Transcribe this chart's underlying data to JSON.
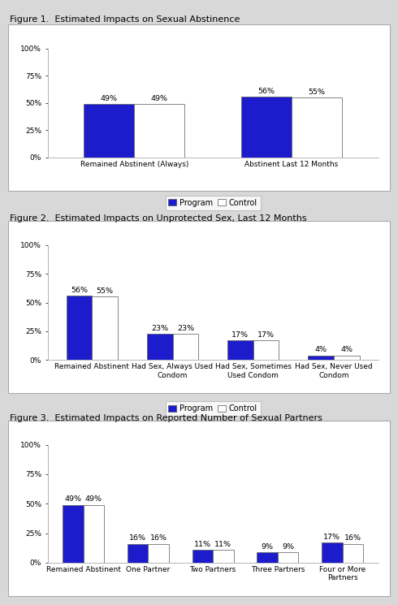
{
  "fig1": {
    "title": "Figure 1.  Estimated Impacts on Sexual Abstinence",
    "categories": [
      "Remained Abstinent (Always)",
      "Abstinent Last 12 Months"
    ],
    "program": [
      49,
      56
    ],
    "control": [
      49,
      55
    ],
    "labels_program": [
      "49%",
      "56%"
    ],
    "labels_control": [
      "49%",
      "55%"
    ]
  },
  "fig2": {
    "title": "Figure 2.  Estimated Impacts on Unprotected Sex, Last 12 Months",
    "categories": [
      "Remained Abstinent",
      "Had Sex, Always Used\nCondom",
      "Had Sex, Sometimes\nUsed Condom",
      "Had Sex, Never Used\nCondom"
    ],
    "program": [
      56,
      23,
      17,
      4
    ],
    "control": [
      55,
      23,
      17,
      4
    ],
    "labels_program": [
      "56%",
      "23%",
      "17%",
      "4%"
    ],
    "labels_control": [
      "55%",
      "23%",
      "17%",
      "4%"
    ]
  },
  "fig3": {
    "title": "Figure 3.  Estimated Impacts on Reported Number of Sexual Partners",
    "categories": [
      "Remained Abstinent",
      "One Partner",
      "Two Partners",
      "Three Partners",
      "Four or More\nPartners"
    ],
    "program": [
      49,
      16,
      11,
      9,
      17
    ],
    "control": [
      49,
      16,
      11,
      9,
      16
    ],
    "labels_program": [
      "49%",
      "16%",
      "11%",
      "9%",
      "17%"
    ],
    "labels_control": [
      "49%",
      "16%",
      "11%",
      "9%",
      "16%"
    ]
  },
  "program_color": "#1c1ccc",
  "control_color": "#FFFFFF",
  "bar_edge_color": "#555555",
  "background_color": "#FFFFFF",
  "figure_bg": "#d8d8d8",
  "box_bg": "#FFFFFF",
  "bar_width": 0.32,
  "ylim": [
    0,
    100
  ],
  "yticks": [
    0,
    25,
    50,
    75,
    100
  ],
  "ytick_labels": [
    "0%",
    "25%",
    "50%",
    "75%",
    "100%"
  ],
  "legend_labels": [
    "Program",
    "Control"
  ],
  "title_fontsize": 8.0,
  "tick_fontsize": 6.5,
  "annot_fontsize": 6.8,
  "legend_fontsize": 7.0
}
